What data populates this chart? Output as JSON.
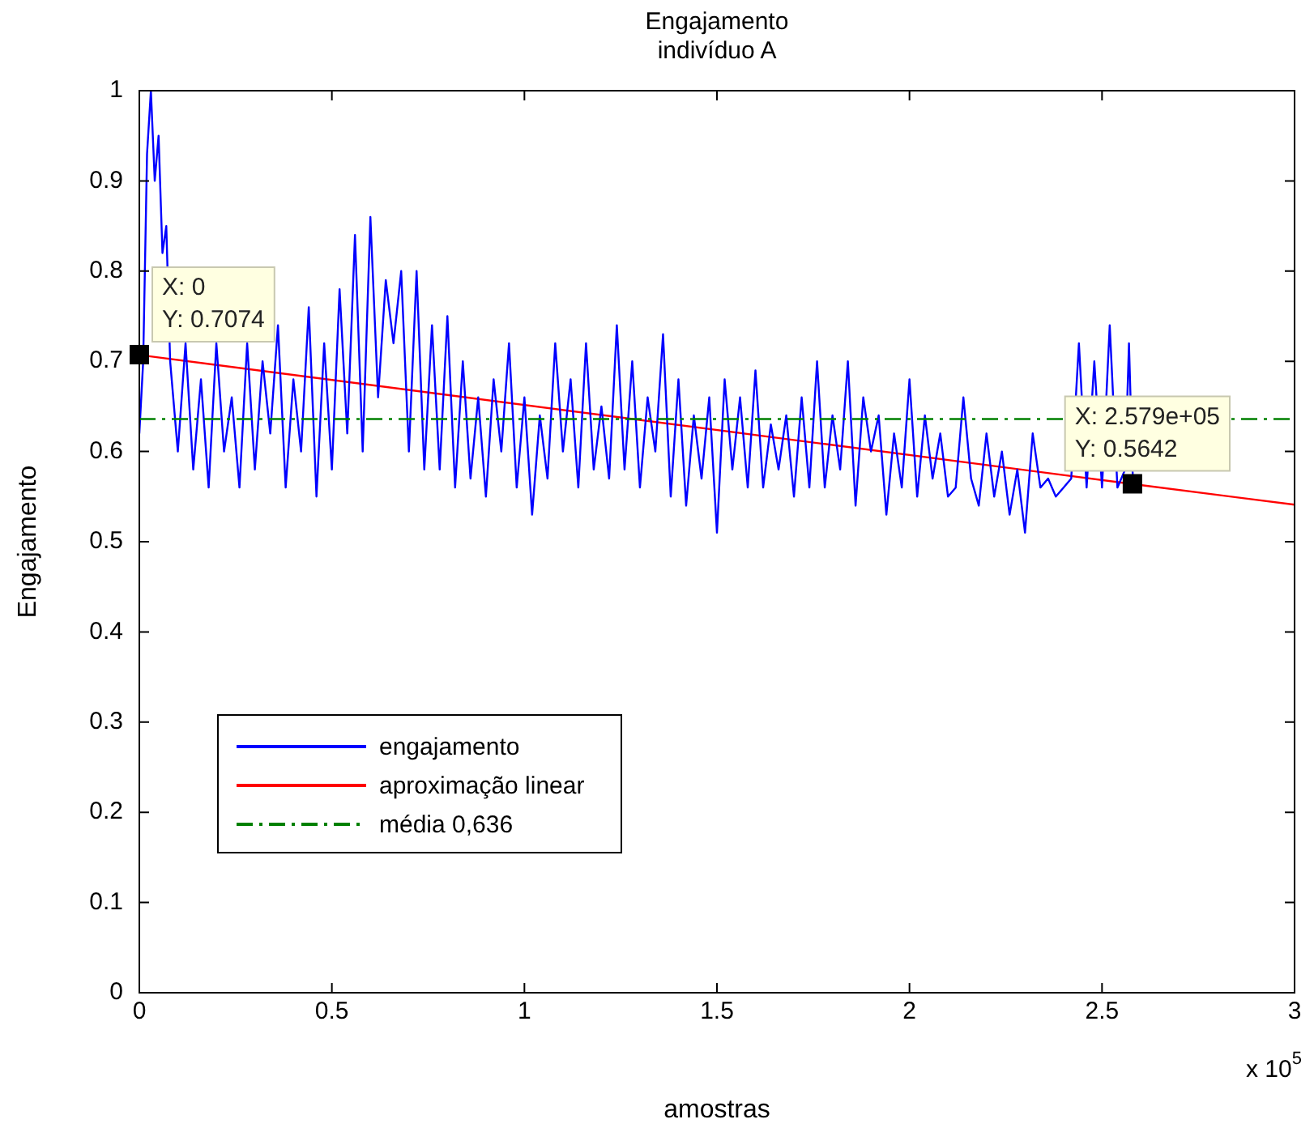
{
  "chart_data": {
    "type": "line",
    "title": "Engajamento",
    "subtitle": "indivíduo A",
    "xlabel": "amostras",
    "ylabel": "Engajamento",
    "xlim": [
      0,
      3
    ],
    "ylim": [
      0,
      1
    ],
    "xticks": [
      0,
      0.5,
      1,
      1.5,
      2,
      2.5,
      3
    ],
    "yticks": [
      0,
      0.1,
      0.2,
      0.3,
      0.4,
      0.5,
      0.6,
      0.7,
      0.8,
      0.9,
      1
    ],
    "grid": false,
    "legend": "bottom left",
    "series": [
      {
        "name": "engajamento",
        "color": "#0000ff",
        "x": [
          0,
          0.01,
          0.02,
          0.03,
          0.04,
          0.05,
          0.06,
          0.07,
          0.08,
          0.1,
          0.12,
          0.14,
          0.16,
          0.18,
          0.2,
          0.22,
          0.24,
          0.26,
          0.28,
          0.3,
          0.32,
          0.34,
          0.36,
          0.38,
          0.4,
          0.42,
          0.44,
          0.46,
          0.48,
          0.5,
          0.52,
          0.54,
          0.56,
          0.58,
          0.6,
          0.62,
          0.64,
          0.66,
          0.68,
          0.7,
          0.72,
          0.74,
          0.76,
          0.78,
          0.8,
          0.82,
          0.84,
          0.86,
          0.88,
          0.9,
          0.92,
          0.94,
          0.96,
          0.98,
          1,
          1.02,
          1.04,
          1.06,
          1.08,
          1.1,
          1.12,
          1.14,
          1.16,
          1.18,
          1.2,
          1.22,
          1.24,
          1.26,
          1.28,
          1.3,
          1.32,
          1.34,
          1.36,
          1.38,
          1.4,
          1.42,
          1.44,
          1.46,
          1.48,
          1.5,
          1.52,
          1.54,
          1.56,
          1.58,
          1.6,
          1.62,
          1.64,
          1.66,
          1.68,
          1.7,
          1.72,
          1.74,
          1.76,
          1.78,
          1.8,
          1.82,
          1.84,
          1.86,
          1.88,
          1.9,
          1.92,
          1.94,
          1.96,
          1.98,
          2,
          2.02,
          2.04,
          2.06,
          2.08,
          2.1,
          2.12,
          2.14,
          2.16,
          2.18,
          2.2,
          2.22,
          2.24,
          2.26,
          2.28,
          2.3,
          2.32,
          2.34,
          2.36,
          2.38,
          2.4,
          2.42,
          2.44,
          2.46,
          2.48,
          2.5,
          2.52,
          2.54,
          2.56,
          2.57,
          2.58
        ],
        "values": [
          0.62,
          0.7,
          0.93,
          1.0,
          0.9,
          0.95,
          0.82,
          0.85,
          0.7,
          0.6,
          0.72,
          0.58,
          0.68,
          0.56,
          0.72,
          0.6,
          0.66,
          0.56,
          0.72,
          0.58,
          0.7,
          0.62,
          0.74,
          0.56,
          0.68,
          0.6,
          0.76,
          0.55,
          0.72,
          0.58,
          0.78,
          0.62,
          0.84,
          0.6,
          0.86,
          0.66,
          0.79,
          0.72,
          0.8,
          0.6,
          0.8,
          0.58,
          0.74,
          0.58,
          0.75,
          0.56,
          0.7,
          0.57,
          0.66,
          0.55,
          0.68,
          0.6,
          0.72,
          0.56,
          0.66,
          0.53,
          0.64,
          0.57,
          0.72,
          0.6,
          0.68,
          0.56,
          0.72,
          0.58,
          0.65,
          0.57,
          0.74,
          0.58,
          0.7,
          0.56,
          0.66,
          0.6,
          0.73,
          0.55,
          0.68,
          0.54,
          0.64,
          0.57,
          0.66,
          0.51,
          0.68,
          0.58,
          0.66,
          0.56,
          0.69,
          0.56,
          0.63,
          0.58,
          0.64,
          0.55,
          0.66,
          0.56,
          0.7,
          0.56,
          0.64,
          0.58,
          0.7,
          0.54,
          0.66,
          0.6,
          0.64,
          0.53,
          0.62,
          0.56,
          0.68,
          0.55,
          0.64,
          0.57,
          0.62,
          0.55,
          0.56,
          0.66,
          0.57,
          0.54,
          0.62,
          0.55,
          0.6,
          0.53,
          0.58,
          0.51,
          0.62,
          0.56,
          0.57,
          0.55,
          0.56,
          0.57,
          0.72,
          0.56,
          0.7,
          0.56,
          0.74,
          0.56,
          0.58,
          0.72,
          0.57
        ]
      },
      {
        "name": "aproximação linear",
        "color": "#ff0000",
        "x": [
          0,
          2.579,
          3
        ],
        "values": [
          0.707,
          0.564,
          0.541
        ]
      }
    ],
    "ref_lines": [
      {
        "axis": "y",
        "value": 0.636,
        "label": "média 0,636",
        "color": "#008000",
        "line_style": "dashed"
      }
    ],
    "annotations": [
      {
        "text": "X: 0\nY: 0.7074",
        "x": 0,
        "y": 0.7074
      },
      {
        "text": "X: 2.579e+05\nY: 0.5642",
        "x": 2.579,
        "y": 0.5642
      },
      "x 10$^{5}$"
    ]
  }
}
